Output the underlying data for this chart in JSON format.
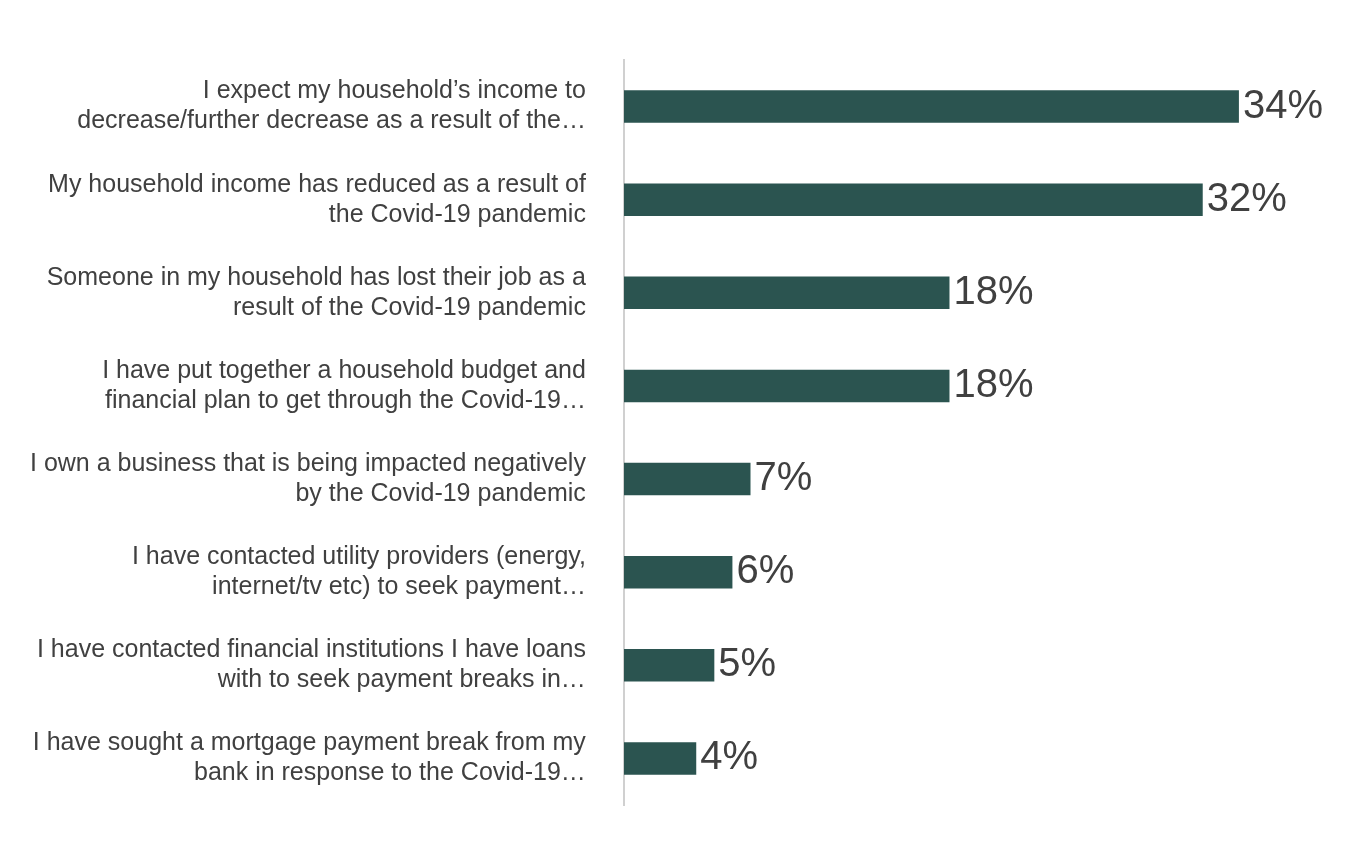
{
  "chart_data": {
    "type": "bar",
    "orientation": "horizontal",
    "categories": [
      "I expect my household’s income to decrease/further decrease as a result of the…",
      "My household income has reduced as a result of the Covid-19 pandemic",
      "Someone in my household has lost their job as a result of the Covid-19 pandemic",
      "I have put together a household budget and financial plan to get through the Covid-19…",
      "I own a business that is being impacted negatively by the Covid-19 pandemic",
      "I have contacted utility providers (energy, internet/tv etc) to seek payment…",
      "I have contacted financial institutions I have loans with to seek payment breaks in…",
      "I have sought a mortgage payment break from my bank in response to the Covid-19…"
    ],
    "values": [
      34,
      32,
      18,
      18,
      7,
      6,
      5,
      4
    ],
    "value_labels": [
      "34%",
      "32%",
      "18%",
      "18%",
      "7%",
      "6%",
      "5%",
      "4%"
    ],
    "color": "#2b5450",
    "legend": false
  }
}
